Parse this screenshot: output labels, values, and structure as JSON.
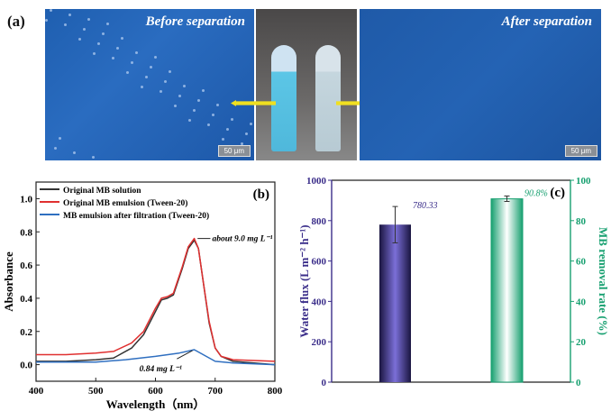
{
  "panel_a": {
    "label": "(a)",
    "before_title": "Before separation",
    "after_title": "After separation",
    "scale_bar": "50 μm"
  },
  "chart_data": [
    {
      "type": "line",
      "panel_label": "(b)",
      "xlabel": "Wavelength（nm）",
      "ylabel": "Absorbance",
      "xlim": [
        400,
        800
      ],
      "ylim": [
        -0.1,
        1.1
      ],
      "xticks": [
        400,
        500,
        600,
        700,
        800
      ],
      "yticks": [
        0.0,
        0.2,
        0.4,
        0.6,
        0.8,
        1.0
      ],
      "legend_position": "top-left",
      "series": [
        {
          "name": "Original MB solution",
          "color": "#333333",
          "x": [
            400,
            450,
            500,
            530,
            560,
            580,
            600,
            610,
            620,
            630,
            645,
            655,
            665,
            672,
            680,
            690,
            700,
            710,
            730,
            800
          ],
          "y": [
            0.02,
            0.02,
            0.03,
            0.04,
            0.1,
            0.18,
            0.32,
            0.39,
            0.4,
            0.42,
            0.58,
            0.7,
            0.75,
            0.7,
            0.5,
            0.25,
            0.1,
            0.05,
            0.02,
            0.0
          ]
        },
        {
          "name": "Original MB emulsion (Tween-20)",
          "color": "#e03030",
          "x": [
            400,
            450,
            500,
            530,
            560,
            580,
            600,
            610,
            620,
            630,
            645,
            655,
            665,
            672,
            680,
            690,
            700,
            710,
            730,
            800
          ],
          "y": [
            0.06,
            0.06,
            0.07,
            0.08,
            0.13,
            0.2,
            0.34,
            0.4,
            0.41,
            0.43,
            0.59,
            0.71,
            0.76,
            0.7,
            0.5,
            0.26,
            0.1,
            0.05,
            0.03,
            0.02
          ]
        },
        {
          "name": "MB emulsion after filtration (Tween-20)",
          "color": "#2f6fc0",
          "x": [
            400,
            500,
            550,
            600,
            640,
            665,
            680,
            700,
            730,
            800
          ],
          "y": [
            0.015,
            0.015,
            0.03,
            0.05,
            0.07,
            0.09,
            0.06,
            0.02,
            0.01,
            0.0
          ]
        }
      ],
      "annotations": [
        "about 9.0 mg L⁻¹",
        "0.84 mg L⁻¹"
      ]
    },
    {
      "type": "bar",
      "panel_label": "(c)",
      "ylabel": "Water flux (L m⁻² h⁻¹)",
      "ylabel_right": "MB removal rate (%)",
      "ylim": [
        0,
        1000
      ],
      "ylim_right": [
        0,
        100
      ],
      "yticks": [
        0,
        200,
        400,
        600,
        800,
        1000
      ],
      "yticks_right": [
        0,
        20,
        40,
        60,
        80,
        100
      ],
      "bars": [
        {
          "name": "Water flux",
          "value": 780.33,
          "error": [
            690,
            870
          ],
          "axis": "left",
          "color": "#7b6fd8",
          "label": "780.33"
        },
        {
          "name": "MB removal rate",
          "value": 90.8,
          "error": [
            89.5,
            92.2
          ],
          "axis": "right",
          "color": "#17a070",
          "label": "90.8%"
        }
      ]
    }
  ]
}
